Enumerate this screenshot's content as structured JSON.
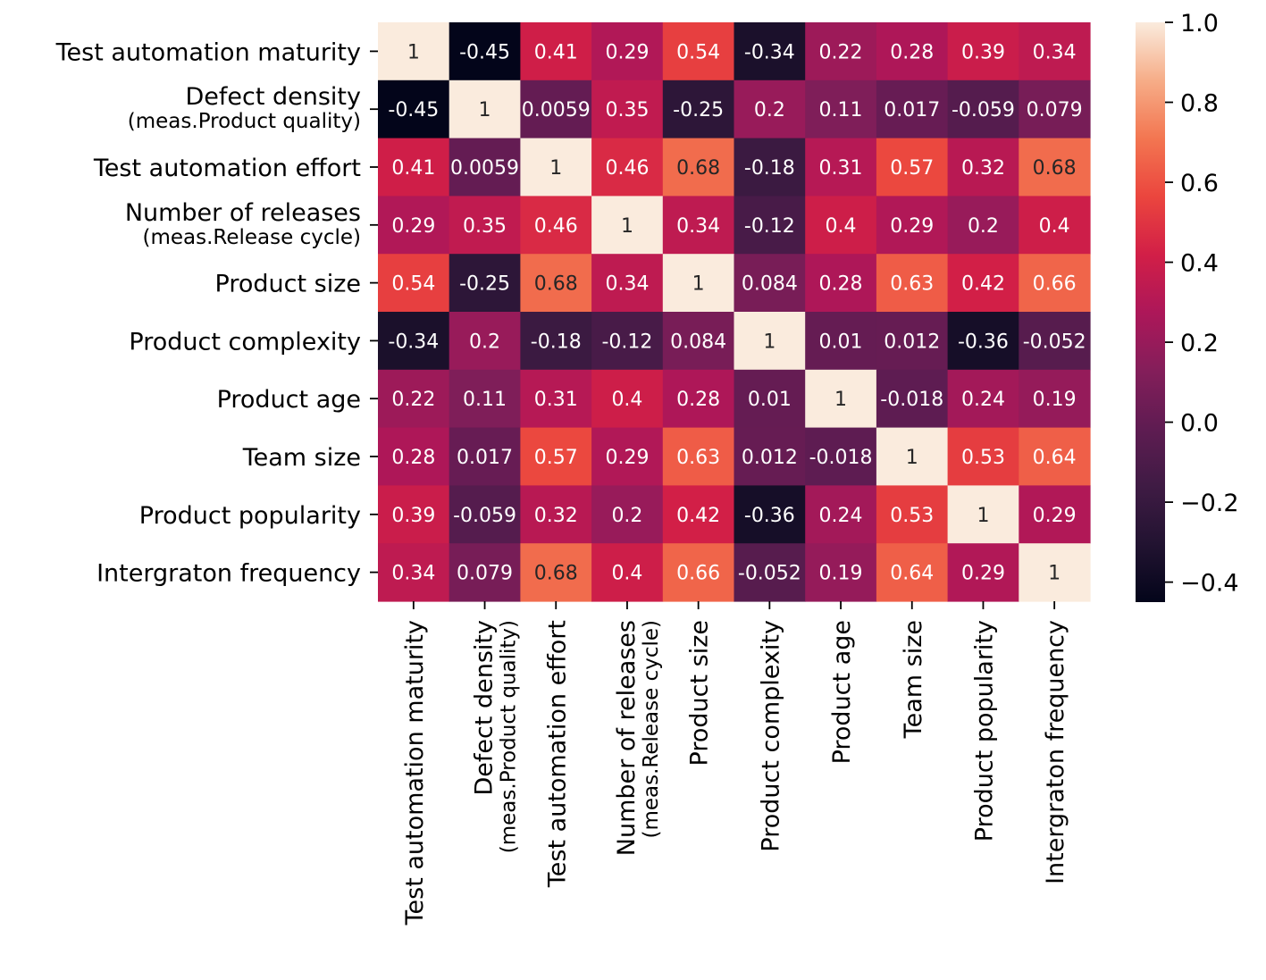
{
  "chart_data": {
    "type": "heatmap",
    "title": "",
    "row_labels": [
      {
        "main": "Test automation maturity",
        "sub": ""
      },
      {
        "main": "Defect density",
        "sub": "(meas.Product quality)"
      },
      {
        "main": "Test automation effort",
        "sub": ""
      },
      {
        "main": "Number of releases",
        "sub": "(meas.Release cycle)"
      },
      {
        "main": "Product size",
        "sub": ""
      },
      {
        "main": "Product complexity",
        "sub": ""
      },
      {
        "main": "Product age",
        "sub": ""
      },
      {
        "main": "Team size",
        "sub": ""
      },
      {
        "main": "Product popularity",
        "sub": ""
      },
      {
        "main": "Intergraton frequency",
        "sub": ""
      }
    ],
    "values": [
      [
        1,
        -0.45,
        0.41,
        0.29,
        0.54,
        -0.34,
        0.22,
        0.28,
        0.39,
        0.34
      ],
      [
        -0.45,
        1,
        0.0059,
        0.35,
        -0.25,
        0.2,
        0.11,
        0.017,
        -0.059,
        0.079
      ],
      [
        0.41,
        0.0059,
        1,
        0.46,
        0.68,
        -0.18,
        0.31,
        0.57,
        0.32,
        0.68
      ],
      [
        0.29,
        0.35,
        0.46,
        1,
        0.34,
        -0.12,
        0.4,
        0.29,
        0.2,
        0.4
      ],
      [
        0.54,
        -0.25,
        0.68,
        0.34,
        1,
        0.084,
        0.28,
        0.63,
        0.42,
        0.66
      ],
      [
        -0.34,
        0.2,
        -0.18,
        -0.12,
        0.084,
        1,
        0.01,
        0.012,
        -0.36,
        -0.052
      ],
      [
        0.22,
        0.11,
        0.31,
        0.4,
        0.28,
        0.01,
        1,
        -0.018,
        0.24,
        0.19
      ],
      [
        0.28,
        0.017,
        0.57,
        0.29,
        0.63,
        0.012,
        -0.018,
        1,
        0.53,
        0.64
      ],
      [
        0.39,
        -0.059,
        0.32,
        0.2,
        0.42,
        -0.36,
        0.24,
        0.53,
        1,
        0.29
      ],
      [
        0.34,
        0.079,
        0.68,
        0.4,
        0.66,
        -0.052,
        0.19,
        0.64,
        0.29,
        1
      ]
    ],
    "annotations": [
      [
        "1",
        "-0.45",
        "0.41",
        "0.29",
        "0.54",
        "-0.34",
        "0.22",
        "0.28",
        "0.39",
        "0.34"
      ],
      [
        "-0.45",
        "1",
        "0.0059",
        "0.35",
        "-0.25",
        "0.2",
        "0.11",
        "0.017",
        "-0.059",
        "0.079"
      ],
      [
        "0.41",
        "0.0059",
        "1",
        "0.46",
        "0.68",
        "-0.18",
        "0.31",
        "0.57",
        "0.32",
        "0.68"
      ],
      [
        "0.29",
        "0.35",
        "0.46",
        "1",
        "0.34",
        "-0.12",
        "0.4",
        "0.29",
        "0.2",
        "0.4"
      ],
      [
        "0.54",
        "-0.25",
        "0.68",
        "0.34",
        "1",
        "0.084",
        "0.28",
        "0.63",
        "0.42",
        "0.66"
      ],
      [
        "-0.34",
        "0.2",
        "-0.18",
        "-0.12",
        "0.084",
        "1",
        "0.01",
        "0.012",
        "-0.36",
        "-0.052"
      ],
      [
        "0.22",
        "0.11",
        "0.31",
        "0.4",
        "0.28",
        "0.01",
        "1",
        "-0.018",
        "0.24",
        "0.19"
      ],
      [
        "0.28",
        "0.017",
        "0.57",
        "0.29",
        "0.63",
        "0.012",
        "-0.018",
        "1",
        "0.53",
        "0.64"
      ],
      [
        "0.39",
        "-0.059",
        "0.32",
        "0.2",
        "0.42",
        "-0.36",
        "0.24",
        "0.53",
        "1",
        "0.29"
      ],
      [
        "0.34",
        "0.079",
        "0.68",
        "0.4",
        "0.66",
        "-0.052",
        "0.19",
        "0.64",
        "0.29",
        "1"
      ]
    ],
    "colorbar": {
      "vmin": -0.45,
      "vmax": 1.0,
      "ticks": [
        1.0,
        0.8,
        0.6,
        0.4,
        0.2,
        0.0,
        -0.2,
        -0.4
      ],
      "tick_labels": [
        "1.0",
        "0.8",
        "0.6",
        "0.4",
        "0.2",
        "0.0",
        "−0.2",
        "−0.4"
      ],
      "colormap": "rocket",
      "colormap_stops": [
        [
          0.0,
          "#03051a"
        ],
        [
          0.1,
          "#221331"
        ],
        [
          0.2,
          "#3f1b44"
        ],
        [
          0.3,
          "#5f1c52"
        ],
        [
          0.4,
          "#841e5a"
        ],
        [
          0.5,
          "#ad1759"
        ],
        [
          0.6,
          "#d21f47"
        ],
        [
          0.7,
          "#eb463e"
        ],
        [
          0.8,
          "#f37651"
        ],
        [
          0.9,
          "#f6ad88"
        ],
        [
          1.0,
          "#faebdd"
        ]
      ]
    }
  }
}
